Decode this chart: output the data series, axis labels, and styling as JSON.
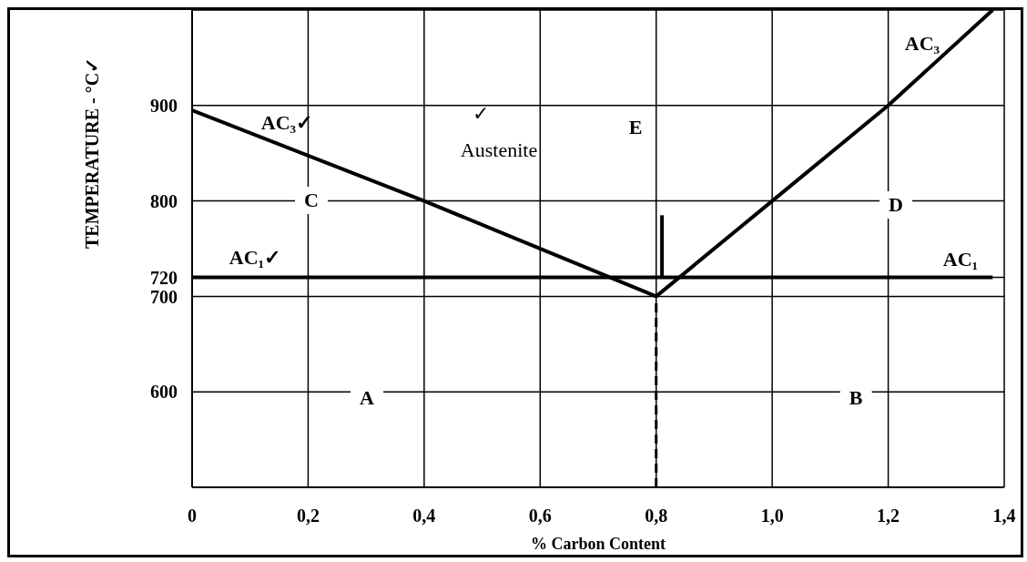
{
  "chart_data": {
    "type": "line",
    "xlabel": "% Carbon Content",
    "ylabel": "TEMPERATURE  -  °C✓",
    "xlim": [
      0,
      1.4
    ],
    "xticks": [
      {
        "value": 0,
        "label": "0"
      },
      {
        "value": 0.2,
        "label": "0,2"
      },
      {
        "value": 0.4,
        "label": "0,4"
      },
      {
        "value": 0.6,
        "label": "0,6"
      },
      {
        "value": 0.8,
        "label": "0,8"
      },
      {
        "value": 1.0,
        "label": "1,0"
      },
      {
        "value": 1.2,
        "label": "1,2"
      },
      {
        "value": 1.4,
        "label": "1,4"
      }
    ],
    "ylim": [
      500,
      1000
    ],
    "yticks": [
      600,
      700,
      720,
      800,
      900
    ],
    "grid": true,
    "marker": "none",
    "series": [
      {
        "color": "#000000",
        "x": [
          0,
          0.4,
          0.8
        ],
        "values": [
          895,
          800,
          700
        ],
        "line_style": "solid"
      },
      {
        "color": "#000000",
        "x": [
          0.8,
          1.0,
          1.2,
          1.38
        ],
        "values": [
          700,
          800,
          900,
          1000
        ],
        "line_style": "solid"
      },
      {
        "color": "#000000",
        "x": [
          0,
          1.38
        ],
        "values": [
          720,
          720
        ],
        "line_style": "solid"
      },
      {
        "color": "#000000",
        "x": [
          0.8,
          0.8
        ],
        "values": [
          500,
          700
        ],
        "line_style": "dashed"
      },
      {
        "color": "#000000",
        "x": [
          0.81,
          0.81
        ],
        "values": [
          720,
          785
        ],
        "line_style": "solid"
      }
    ],
    "annotations": [
      "AC₃✓",
      "✓",
      "Austenite",
      "E",
      "AC₃",
      "C",
      "D",
      "AC₁✓",
      "AC₁",
      "A",
      "B"
    ]
  }
}
